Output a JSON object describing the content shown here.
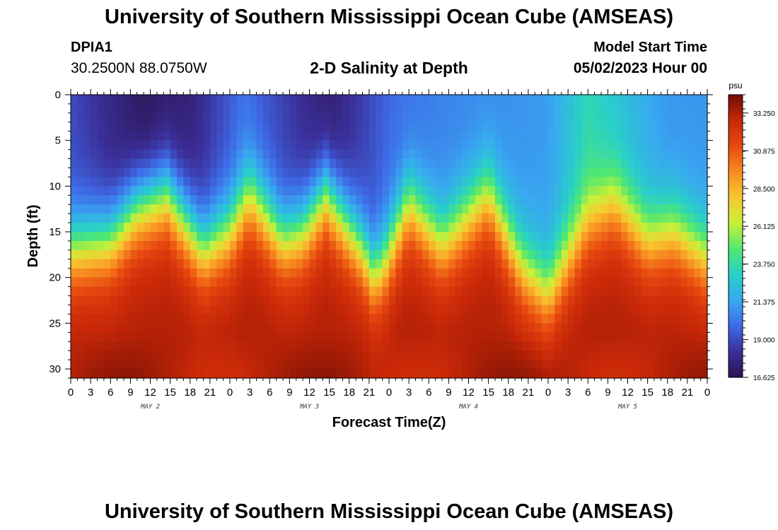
{
  "header": {
    "title": "University of Southern Mississippi Ocean Cube (AMSEAS)",
    "station_id": "DPIA1",
    "coordinates": "30.2500N  88.0750W",
    "subtitle": "2-D Salinity at Depth",
    "model_start_label": "Model Start Time",
    "model_start_value": "05/02/2023 Hour 00"
  },
  "footer": {
    "title": "University of Southern Mississippi Ocean Cube (AMSEAS)"
  },
  "chart_data": {
    "type": "heatmap",
    "title": "2-D Salinity at Depth",
    "xlabel": "Forecast Time(Z)",
    "ylabel": "Depth (ft)",
    "x_range_hours": [
      0,
      96
    ],
    "x_tick_labels": [
      "0",
      "3",
      "6",
      "9",
      "12",
      "15",
      "18",
      "21",
      "0",
      "3",
      "6",
      "9",
      "12",
      "15",
      "18",
      "21",
      "0",
      "3",
      "6",
      "9",
      "12",
      "15",
      "18",
      "21",
      "0",
      "3",
      "6",
      "9",
      "12",
      "15",
      "18",
      "21",
      "0"
    ],
    "day_labels": [
      {
        "label": "MAY 2",
        "hour": 12
      },
      {
        "label": "MAY 3",
        "hour": 36
      },
      {
        "label": "MAY 4",
        "hour": 60
      },
      {
        "label": "MAY 5",
        "hour": 84
      }
    ],
    "y_range_ft": [
      0,
      31
    ],
    "y_ticks": [
      0,
      5,
      10,
      15,
      20,
      25,
      30
    ],
    "colorbar": {
      "unit": "psu",
      "min": 16.625,
      "max": 34.4,
      "tick_labels": [
        "33.250",
        "30.875",
        "28.500",
        "26.125",
        "23.750",
        "21.375",
        "19.000",
        "16.625"
      ],
      "tick_values": [
        33.25,
        30.875,
        28.5,
        26.125,
        23.75,
        21.375,
        19.0,
        16.625
      ],
      "colors": [
        "#2b1450",
        "#3b2f9a",
        "#3e6be8",
        "#38a8f0",
        "#28d0c8",
        "#50e870",
        "#c8f038",
        "#f8c830",
        "#f88a20",
        "#e84a10",
        "#c82808",
        "#6e0c04"
      ]
    },
    "halocline_depth_ft": [
      {
        "hour": 0,
        "depth": 17
      },
      {
        "hour": 6,
        "depth": 16
      },
      {
        "hour": 10,
        "depth": 12.5
      },
      {
        "hour": 14.5,
        "depth": 11
      },
      {
        "hour": 20,
        "depth": 17
      },
      {
        "hour": 24,
        "depth": 15
      },
      {
        "hour": 27,
        "depth": 11
      },
      {
        "hour": 32,
        "depth": 16
      },
      {
        "hour": 35,
        "depth": 15
      },
      {
        "hour": 38.5,
        "depth": 11
      },
      {
        "hour": 44,
        "depth": 17
      },
      {
        "hour": 45.5,
        "depth": 19.5
      },
      {
        "hour": 47,
        "depth": 19
      },
      {
        "hour": 51,
        "depth": 12
      },
      {
        "hour": 56,
        "depth": 16.5
      },
      {
        "hour": 58,
        "depth": 15
      },
      {
        "hour": 63,
        "depth": 11
      },
      {
        "hour": 68,
        "depth": 19
      },
      {
        "hour": 72,
        "depth": 22
      },
      {
        "hour": 78,
        "depth": 14
      },
      {
        "hour": 82,
        "depth": 12
      },
      {
        "hour": 87,
        "depth": 16
      },
      {
        "hour": 91,
        "depth": 15
      },
      {
        "hour": 96,
        "depth": 18
      }
    ],
    "surface_salinity_psu": [
      {
        "hour": 0,
        "value": 19.0
      },
      {
        "hour": 11,
        "value": 16.8
      },
      {
        "hour": 18,
        "value": 17.5
      },
      {
        "hour": 26,
        "value": 20.0
      },
      {
        "hour": 39,
        "value": 17.2
      },
      {
        "hour": 48,
        "value": 19.8
      },
      {
        "hour": 56,
        "value": 20.5
      },
      {
        "hour": 64,
        "value": 20.8
      },
      {
        "hour": 72,
        "value": 21.2
      },
      {
        "hour": 78,
        "value": 23.5
      },
      {
        "hour": 90,
        "value": 21.0
      },
      {
        "hour": 96,
        "value": 21.0
      }
    ],
    "bottom_salinity_psu": 33.2
  }
}
